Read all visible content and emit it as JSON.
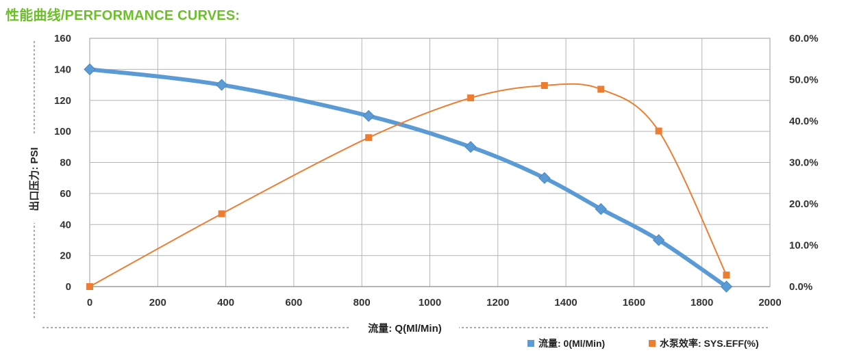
{
  "page": {
    "title": "性能曲线/PERFORMANCE CURVES:",
    "title_color": "#6cbf2a"
  },
  "chart_data": {
    "type": "line",
    "title": "性能曲线/PERFORMANCE CURVES:",
    "xlabel": "流量: Q(Ml/Min)",
    "ylabel": "出口压力: PSI",
    "xlim": [
      0,
      2000
    ],
    "ylim": [
      0,
      160
    ],
    "y2lim": [
      0,
      0.6
    ],
    "x_ticks": [
      "0",
      "200",
      "400",
      "600",
      "800",
      "1000",
      "1200",
      "1400",
      "1600",
      "1800",
      "2000"
    ],
    "y_ticks": [
      "0",
      "20",
      "40",
      "60",
      "80",
      "100",
      "120",
      "140",
      "160"
    ],
    "y2_ticks": [
      "0.0%",
      "10.0%",
      "20.0%",
      "30.0%",
      "40.0%",
      "50.0%",
      "60.0%"
    ],
    "grid": true,
    "legend_position": "bottom-right",
    "series": [
      {
        "name": "流量: 0(Ml/Min)",
        "axis": "left",
        "color": "#5b9bd5",
        "marker": "diamond",
        "x": [
          0,
          388,
          820,
          1120,
          1337,
          1503,
          1673,
          1872
        ],
        "y": [
          140,
          130,
          110,
          90,
          70,
          50,
          30,
          0
        ]
      },
      {
        "name": "水泵效率: SYS.EFF(%)",
        "axis": "right",
        "color": "#ed7d31",
        "marker": "square",
        "x": [
          0,
          388,
          820,
          1120,
          1337,
          1503,
          1673,
          1872
        ],
        "y": [
          0.0,
          0.176,
          0.36,
          0.456,
          0.486,
          0.477,
          0.376,
          0.028
        ]
      }
    ]
  }
}
